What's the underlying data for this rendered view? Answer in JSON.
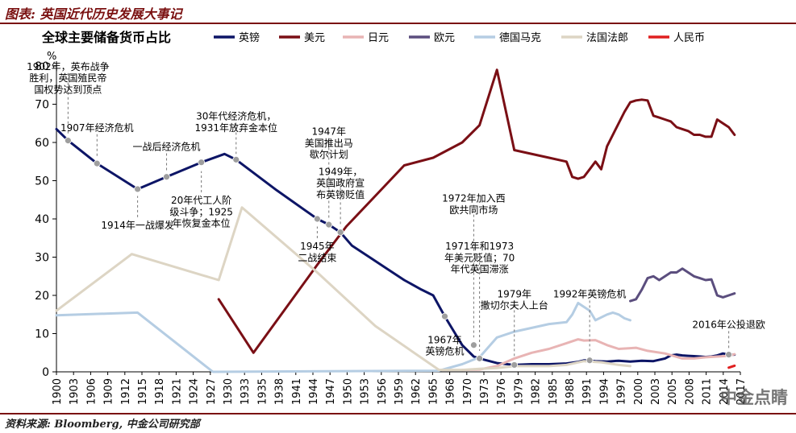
{
  "header": {
    "title": "图表: 英国近代历史发展大事记"
  },
  "footer": {
    "source": "资料来源: Bloomberg, 中金公司研究部"
  },
  "watermark": {
    "text": "中金点睛"
  },
  "chart_data": {
    "type": "line",
    "title": "全球主要储备货币占比",
    "ylabel": "%",
    "ylim": [
      0,
      80
    ],
    "yticks": [
      0,
      10,
      20,
      30,
      40,
      50,
      60,
      70,
      80
    ],
    "xlim": [
      1900,
      2018
    ],
    "xticks": [
      1900,
      1903,
      1906,
      1909,
      1912,
      1915,
      1918,
      1921,
      1924,
      1927,
      1930,
      1933,
      1935,
      1938,
      1941,
      1944,
      1947,
      1950,
      1953,
      1956,
      1959,
      1962,
      1965,
      1968,
      1970,
      1973,
      1976,
      1979,
      1982,
      1985,
      1988,
      1991,
      1994,
      1997,
      2000,
      2003,
      2005,
      2008,
      2011,
      2014,
      2017
    ],
    "series": [
      {
        "name": "英镑",
        "color": "#0d1566",
        "x": [
          1900,
          1902,
          1907,
          1914,
          1919,
          1925,
          1929,
          1931,
          1938,
          1945,
          1947,
          1949,
          1951,
          1954,
          1957,
          1960,
          1963,
          1965,
          1967,
          1970,
          1972,
          1973,
          1976,
          1979,
          1982,
          1985,
          1988,
          1990,
          1991,
          1993,
          1995,
          1997,
          1999,
          2001,
          2003,
          2005,
          2006,
          2007,
          2008,
          2009,
          2010,
          2011,
          2012,
          2013,
          2014,
          2015,
          2016,
          2017
        ],
        "y": [
          63.5,
          60.5,
          54.5,
          47.8,
          51,
          54.8,
          57,
          55.5,
          47.5,
          40,
          38.5,
          36.5,
          33,
          30,
          27,
          24,
          21.5,
          20,
          14.5,
          7,
          4,
          3.5,
          2.3,
          1.8,
          2,
          2,
          2.2,
          2.6,
          3,
          2.8,
          2.7,
          2.9,
          2.7,
          2.9,
          2.8,
          3.5,
          4.3,
          4.5,
          4.3,
          4.2,
          4.1,
          4,
          3.9,
          4,
          4.3,
          4.8,
          4.5,
          4.5
        ]
      },
      {
        "name": "美元",
        "color": "#7a0f15",
        "x": [
          1928,
          1934,
          1945,
          1950,
          1955,
          1960,
          1965,
          1970,
          1973,
          1976,
          1979,
          1985,
          1988,
          1989,
          1990,
          1991,
          1992,
          1993,
          1994,
          1995,
          1996,
          1998,
          1999,
          2000,
          2001,
          2002,
          2003,
          2004,
          2005,
          2006,
          2007,
          2008,
          2009,
          2010,
          2011,
          2012,
          2013,
          2014,
          2015,
          2016,
          2017
        ],
        "y": [
          19,
          5,
          28,
          38,
          46,
          54,
          56,
          60,
          64.5,
          79,
          58,
          56,
          55,
          51,
          50.5,
          51,
          53,
          55,
          53,
          59,
          62,
          68,
          70.5,
          71,
          71.2,
          71,
          67,
          66.5,
          66,
          65.5,
          64,
          63.5,
          63,
          62,
          62,
          61.5,
          61.5,
          66,
          65,
          64,
          62
        ]
      },
      {
        "name": "日元",
        "color": "#e8b4b4",
        "x": [
          1970,
          1973,
          1976,
          1979,
          1982,
          1985,
          1988,
          1990,
          1991,
          1993,
          1995,
          1997,
          1999,
          2000,
          2002,
          2005,
          2008,
          2010,
          2012,
          2014,
          2016,
          2017
        ],
        "y": [
          0.5,
          0.6,
          1.5,
          3.5,
          5,
          6,
          7.5,
          8.5,
          8.2,
          8.3,
          7,
          6,
          6.2,
          6.3,
          5.5,
          4.8,
          3.5,
          3.5,
          3.8,
          4,
          4.2,
          4.6
        ]
      },
      {
        "name": "欧元",
        "color": "#5b4e7e",
        "x": [
          1999,
          2000,
          2001,
          2002,
          2003,
          2004,
          2005,
          2006,
          2007,
          2008,
          2009,
          2010,
          2011,
          2012,
          2013,
          2014,
          2015,
          2016,
          2017
        ],
        "y": [
          18.5,
          19,
          21.5,
          24.5,
          25,
          24,
          25,
          26,
          26,
          27,
          26,
          25,
          24.5,
          24,
          24.2,
          20,
          19.5,
          20,
          20.5
        ]
      },
      {
        "name": "德国马克",
        "color": "#b5cde3",
        "x": [
          1900,
          1914,
          1927,
          1966,
          1970,
          1973,
          1976,
          1979,
          1982,
          1985,
          1988,
          1989,
          1990,
          1991,
          1992,
          1993,
          1995,
          1996,
          1997,
          1998,
          1999
        ],
        "y": [
          14.8,
          15.5,
          0,
          0.3,
          2,
          3.8,
          9,
          10.5,
          11.5,
          12.5,
          13,
          15,
          18,
          17,
          16,
          13.5,
          15,
          15.5,
          15,
          14,
          13.5
        ]
      },
      {
        "name": "法国法郎",
        "color": "#ddd5c4",
        "x": [
          1900,
          1913,
          1928,
          1932,
          1945,
          1955,
          1966,
          1970,
          1973,
          1976,
          1979,
          1982,
          1985,
          1988,
          1991,
          1994,
          1997,
          1999
        ],
        "y": [
          16,
          30.8,
          24,
          43,
          26,
          12,
          0.5,
          0.5,
          0.8,
          1,
          1.5,
          1.5,
          1.5,
          1.8,
          2.8,
          2.5,
          1.8,
          1.5
        ]
      },
      {
        "name": "人民币",
        "color": "#e02020",
        "x": [
          2016,
          2017
        ],
        "y": [
          1.1,
          1.6
        ]
      }
    ],
    "markers": [
      {
        "x": 1902,
        "y": 60.5
      },
      {
        "x": 1907,
        "y": 54.5
      },
      {
        "x": 1914,
        "y": 47.8
      },
      {
        "x": 1919,
        "y": 51
      },
      {
        "x": 1925,
        "y": 54.8
      },
      {
        "x": 1931,
        "y": 55.5
      },
      {
        "x": 1945,
        "y": 40
      },
      {
        "x": 1947,
        "y": 38.5
      },
      {
        "x": 1949,
        "y": 36.5
      },
      {
        "x": 1967,
        "y": 14.5
      },
      {
        "x": 1972,
        "y": 7
      },
      {
        "x": 1973,
        "y": 3.5
      },
      {
        "x": 1979,
        "y": 1.8
      },
      {
        "x": 1992,
        "y": 3
      },
      {
        "x": 2016,
        "y": 4.5
      }
    ],
    "annotations": [
      {
        "text": "1902年，英布战争",
        "x": 1902,
        "y": 79,
        "ly": 62
      },
      {
        "text": "胜利，英国殖民帝",
        "x": 1902,
        "y": 76
      },
      {
        "text": "国权势达到顶点",
        "x": 1902,
        "y": 73
      },
      {
        "text": "1907年经济危机",
        "x": 1907,
        "y": 63,
        "ly": 56
      },
      {
        "text": "1914年一战爆发",
        "x": 1914,
        "y": 37.5,
        "ly": 46
      },
      {
        "text": "一战后经济危机",
        "x": 1919,
        "y": 58,
        "ly": 52.5
      },
      {
        "text": "20年代工人阶",
        "x": 1925,
        "y": 44,
        "ly": 52.5
      },
      {
        "text": "级斗争；1925",
        "x": 1925,
        "y": 41
      },
      {
        "text": "年恢复金本位",
        "x": 1925,
        "y": 38
      },
      {
        "text": "30年代经济危机，",
        "x": 1931,
        "y": 66,
        "ly": 57
      },
      {
        "text": "1931年放弃金本位",
        "x": 1931,
        "y": 63
      },
      {
        "text": "1947年",
        "x": 1947,
        "y": 62,
        "ly": 40
      },
      {
        "text": "美国推出马",
        "x": 1947,
        "y": 59
      },
      {
        "text": "歇尔计划",
        "x": 1947,
        "y": 56
      },
      {
        "text": "1949年，",
        "x": 1949,
        "y": 51.5,
        "ly": 38
      },
      {
        "text": "英国政府宣",
        "x": 1949,
        "y": 48.5
      },
      {
        "text": "布英镑贬值",
        "x": 1949,
        "y": 45.5
      },
      {
        "text": "1945年",
        "x": 1945,
        "y": 32,
        "ly": 38
      },
      {
        "text": "二战结束",
        "x": 1945,
        "y": 29
      },
      {
        "text": "1972年加入西",
        "x": 1972,
        "y": 44.5,
        "ly": 9
      },
      {
        "text": "欧共同市场",
        "x": 1972,
        "y": 41.5
      },
      {
        "text": "1971年和1973",
        "x": 1973,
        "y": 32,
        "ly": 5.5
      },
      {
        "text": "年美元贬值；70",
        "x": 1973,
        "y": 29
      },
      {
        "text": "年代英国滞涨",
        "x": 1973,
        "y": 26
      },
      {
        "text": "1979年",
        "x": 1979,
        "y": 19.5,
        "ly": 3.5
      },
      {
        "text": "撒切尔夫人上台",
        "x": 1979,
        "y": 16.5
      },
      {
        "text": "1992年英镑危机",
        "x": 1992,
        "y": 19.5,
        "ly": 5
      },
      {
        "text": "2016年公投退欧",
        "x": 2016,
        "y": 11.5,
        "ly": 6
      },
      {
        "text": "1967年",
        "x": 1967,
        "y": 7.5
      },
      {
        "text": "英镑危机",
        "x": 1967,
        "y": 4.5
      }
    ]
  }
}
